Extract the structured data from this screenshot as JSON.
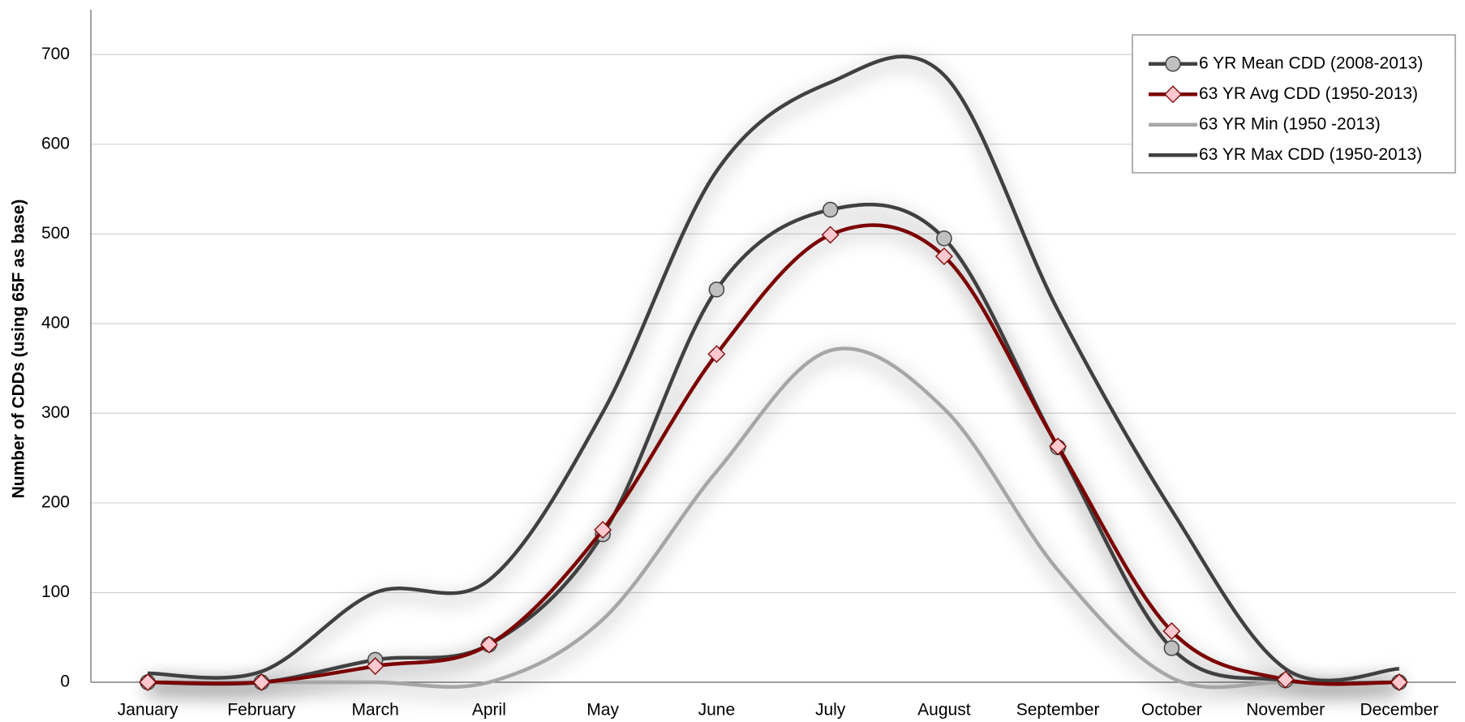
{
  "chart_data": {
    "type": "line",
    "y_label": "Number of CDDs (using 65F as base)",
    "categories": [
      "January",
      "February",
      "March",
      "April",
      "May",
      "June",
      "July",
      "August",
      "September",
      "October",
      "November",
      "December"
    ],
    "series": [
      {
        "name": "6 YR Mean CDD (2008-2013)",
        "color": "#404040",
        "marker": "circle",
        "marker_color": "#c0c0c0",
        "values": [
          0,
          0,
          25,
          42,
          165,
          438,
          527,
          495,
          262,
          38,
          2,
          0
        ]
      },
      {
        "name": "63 YR Avg CDD (1950-2013)",
        "color": "#7b0000",
        "marker": "diamond",
        "marker_color": "#ffc7ce",
        "values": [
          0,
          0,
          18,
          42,
          170,
          366,
          499,
          475,
          263,
          57,
          3,
          0
        ]
      },
      {
        "name": "63 YR Min (1950 -2013)",
        "color": "#a6a6a6",
        "values": [
          0,
          0,
          0,
          0,
          70,
          235,
          370,
          305,
          125,
          5,
          0,
          0
        ]
      },
      {
        "name": "63 YR Max CDD (1950-2013)",
        "color": "#404040",
        "values": [
          10,
          12,
          100,
          114,
          301,
          570,
          669,
          677,
          415,
          192,
          15,
          15
        ]
      }
    ],
    "ylim": [
      0,
      750
    ],
    "yticks": [
      0,
      100,
      200,
      300,
      400,
      500,
      600,
      700
    ],
    "grid": true,
    "smooth": true,
    "legend": "top-right"
  }
}
